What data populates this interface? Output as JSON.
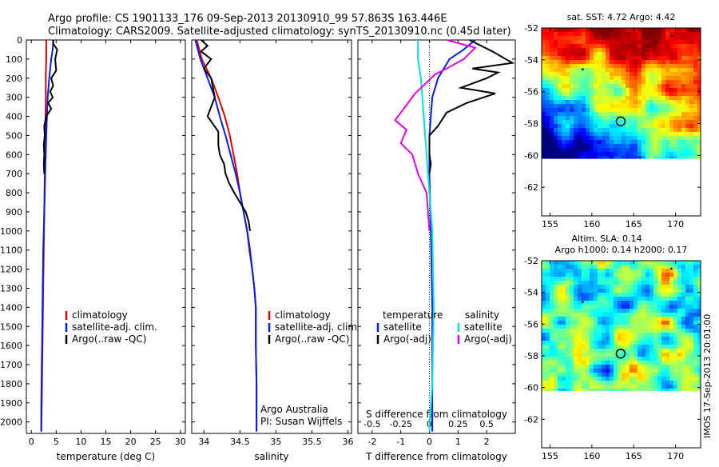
{
  "header": {
    "line1": "Argo profile: CS 1901133_176 09-Sep-2013 20130910_99 57.863S 163.446E",
    "line2": "Climatology: CARS2009. Satellite-adjusted climatology: synTS_20130910.nc (0.45d later)"
  },
  "colors": {
    "climatology": "#e00000",
    "satellite_adj": "#0020e0",
    "argo": "#000000",
    "salinity_satellite": "#00e0e0",
    "salinity_argo": "#e000e0"
  },
  "depth_ticks": [
    "0",
    "100",
    "200",
    "300",
    "400",
    "500",
    "600",
    "700",
    "800",
    "900",
    "1000",
    "1100",
    "1200",
    "1300",
    "1400",
    "1500",
    "1600",
    "1700",
    "1800",
    "1900",
    "2000"
  ],
  "chart_data": [
    {
      "type": "line",
      "id": "temperature",
      "xlabel": "temperature (deg C)",
      "ylabel": "",
      "xlim": [
        -1,
        31
      ],
      "ylim": [
        2060,
        0
      ],
      "xticks": [
        "0",
        "5",
        "10",
        "15",
        "20",
        "25",
        "30"
      ],
      "xtick_values": [
        0,
        5,
        10,
        15,
        20,
        25,
        30
      ],
      "grid": false,
      "legend_position": "center",
      "legend": [
        "climatology",
        "satellite-adj. clim.",
        "Argo(..raw -QC)"
      ],
      "series": [
        {
          "name": "climatology",
          "color": "#e00000",
          "x": [
            3.0,
            3.0,
            3.0,
            2.9,
            2.9,
            2.8,
            2.7,
            2.6,
            2.5,
            2.4,
            2.3,
            2.2,
            2.1,
            2.0,
            2.0
          ],
          "y": [
            0,
            50,
            100,
            180,
            300,
            500,
            700,
            900,
            1100,
            1300,
            1500,
            1700,
            1900,
            2000,
            2050
          ]
        },
        {
          "name": "satellite-adj. clim.",
          "color": "#0020e0",
          "x": [
            4.4,
            4.3,
            4.0,
            3.6,
            3.3,
            3.0,
            2.8,
            2.6,
            2.4,
            2.3,
            2.2,
            2.1,
            2.0,
            2.0,
            2.0
          ],
          "y": [
            0,
            50,
            100,
            200,
            300,
            500,
            700,
            900,
            1100,
            1300,
            1500,
            1700,
            1900,
            2000,
            2050
          ]
        },
        {
          "name": "Argo(..raw -QC)",
          "color": "#000000",
          "x": [
            4.4,
            4.4,
            5.2,
            4.8,
            5.0,
            4.0,
            4.4,
            3.8,
            4.3,
            3.4,
            4.0,
            3.0,
            2.6,
            2.7,
            2.5,
            2.6,
            2.5,
            2.6
          ],
          "y": [
            0,
            20,
            50,
            100,
            160,
            200,
            240,
            270,
            300,
            330,
            360,
            400,
            450,
            500,
            550,
            600,
            650,
            700
          ]
        }
      ]
    },
    {
      "type": "line",
      "id": "salinity",
      "xlabel": "salinity",
      "ylabel": "",
      "xlim": [
        33.83,
        36.05
      ],
      "ylim": [
        2060,
        0
      ],
      "xticks": [
        "34",
        "34.5",
        "35",
        "35.5",
        "36"
      ],
      "xtick_values": [
        34,
        34.5,
        35,
        35.5,
        36
      ],
      "grid": false,
      "legend_position": "center",
      "legend": [
        "climatology",
        "satellite-adj. clim.",
        "Argo(..raw -QC)"
      ],
      "annotations": [
        "Argo Australia",
        "PI: Susan Wijffels"
      ],
      "series": [
        {
          "name": "climatology",
          "color": "#e00000",
          "x": [
            33.9,
            33.97,
            34.1,
            34.2,
            34.29,
            34.36,
            34.41,
            34.46,
            34.5,
            34.55,
            34.6,
            34.63,
            34.67,
            34.7,
            34.72,
            34.72,
            34.73,
            34.73
          ],
          "y": [
            0,
            100,
            200,
            300,
            400,
            500,
            600,
            700,
            800,
            900,
            1000,
            1100,
            1200,
            1300,
            1400,
            1600,
            1800,
            2050
          ]
        },
        {
          "name": "satellite-adj. clim.",
          "color": "#0020e0",
          "x": [
            33.88,
            33.95,
            34.05,
            34.15,
            34.22,
            34.3,
            34.37,
            34.44,
            34.5,
            34.55,
            34.6,
            34.64,
            34.67,
            34.7,
            34.72,
            34.72,
            34.73,
            34.73
          ],
          "y": [
            0,
            100,
            200,
            300,
            400,
            500,
            600,
            700,
            800,
            900,
            1000,
            1100,
            1200,
            1300,
            1400,
            1600,
            1800,
            2050
          ]
        },
        {
          "name": "Argo(..raw -QC)",
          "color": "#000000",
          "x": [
            33.96,
            34.05,
            33.96,
            34.1,
            34.0,
            34.1,
            34.15,
            34.05,
            34.2,
            34.2,
            34.22,
            34.28,
            34.3,
            34.35,
            34.42,
            34.5,
            34.58,
            34.62,
            34.64
          ],
          "y": [
            0,
            30,
            60,
            100,
            150,
            200,
            300,
            400,
            480,
            550,
            600,
            650,
            700,
            750,
            800,
            850,
            900,
            950,
            1000
          ]
        }
      ]
    },
    {
      "type": "line",
      "id": "difference",
      "xlabel": "T difference from climatology",
      "xlabel2": "S difference from climatology",
      "xlim": [
        -2.5,
        3.0
      ],
      "ylim": [
        2060,
        0
      ],
      "xticks": [
        "-2",
        "-1",
        "0",
        "1",
        "2"
      ],
      "xtick_values": [
        -2,
        -1,
        0,
        1,
        2
      ],
      "xticks_s": [
        "-0.5",
        "-0.25",
        "0",
        "0.25",
        "0.5"
      ],
      "xtick_s_positions": [
        -2,
        -1,
        0,
        1,
        2
      ],
      "grid": false,
      "legend_position": "center",
      "legend_headers": [
        "temperature",
        "salinity"
      ],
      "legend": [
        "satellite",
        "Argo(-adj)",
        "satellite",
        "Argo(-adj)"
      ],
      "series": [
        {
          "name": "temperature satellite",
          "color": "#0020e0",
          "x": [
            1.6,
            1.2,
            0.7,
            0.3,
            0.1,
            0.0,
            0.0,
            0.05,
            0.1,
            0.1,
            0.1
          ],
          "y": [
            0,
            50,
            100,
            200,
            300,
            500,
            700,
            1000,
            1400,
            1800,
            2050
          ]
        },
        {
          "name": "temperature Argo(-adj)",
          "color": "#000000",
          "x": [
            1.4,
            2.2,
            2.9,
            1.5,
            2.4,
            2.0,
            1.1,
            2.3,
            1.3,
            0.6,
            0.3,
            0.0,
            0.0,
            0.05,
            0.0
          ],
          "y": [
            0,
            60,
            120,
            150,
            170,
            200,
            250,
            280,
            330,
            380,
            450,
            500,
            600,
            650,
            700
          ]
        },
        {
          "name": "salinity satellite",
          "color": "#00e0e0",
          "x": [
            -0.4,
            -0.4,
            -0.3,
            -0.2,
            -0.1,
            0.0,
            0.1,
            0.15,
            0.1,
            0.0
          ],
          "y": [
            0,
            100,
            200,
            400,
            600,
            800,
            1000,
            1400,
            1800,
            2050
          ]
        },
        {
          "name": "salinity Argo(-adj)",
          "color": "#e000e0",
          "x": [
            0.6,
            1.6,
            1.2,
            0.6,
            0.2,
            -0.5,
            -1.2,
            -0.8,
            -1.0,
            -0.6,
            -0.4,
            -0.1,
            0.0
          ],
          "y": [
            0,
            40,
            100,
            150,
            180,
            280,
            420,
            470,
            540,
            600,
            700,
            800,
            1000
          ]
        }
      ]
    },
    {
      "type": "heatmap",
      "id": "sst_map",
      "title": "sat. SST: 4.72 Argo: 4.42",
      "xlim": [
        154,
        173
      ],
      "ylim": [
        -63.8,
        -52
      ],
      "xticks": [
        "155",
        "160",
        "165",
        "170"
      ],
      "xtick_values": [
        155,
        160,
        165,
        170
      ],
      "yticks": [
        "-52",
        "-54",
        "-56",
        "-58",
        "-60",
        "-62"
      ],
      "ytick_values": [
        -52,
        -54,
        -56,
        -58,
        -60,
        -62
      ],
      "data_lat_range": [
        -60.2,
        -52
      ],
      "argo_position": [
        163.446,
        -57.863
      ]
    },
    {
      "type": "heatmap",
      "id": "sla_map",
      "title": "Altim. SLA: 0.14",
      "subtitle": "Argo h1000: 0.14 h2000: 0.17",
      "xlim": [
        154,
        173
      ],
      "ylim": [
        -63.8,
        -52
      ],
      "xticks": [
        "155",
        "160",
        "165",
        "170"
      ],
      "xtick_values": [
        155,
        160,
        165,
        170
      ],
      "yticks": [
        "-52",
        "-54",
        "-56",
        "-58",
        "-60",
        "-62"
      ],
      "ytick_values": [
        -52,
        -54,
        -56,
        -58,
        -60,
        -62
      ],
      "data_lat_range": [
        -60.2,
        -52
      ],
      "argo_position": [
        163.446,
        -57.863
      ]
    }
  ],
  "footer_stamp": "IMOS 17-Sep-2013 20:01:00"
}
